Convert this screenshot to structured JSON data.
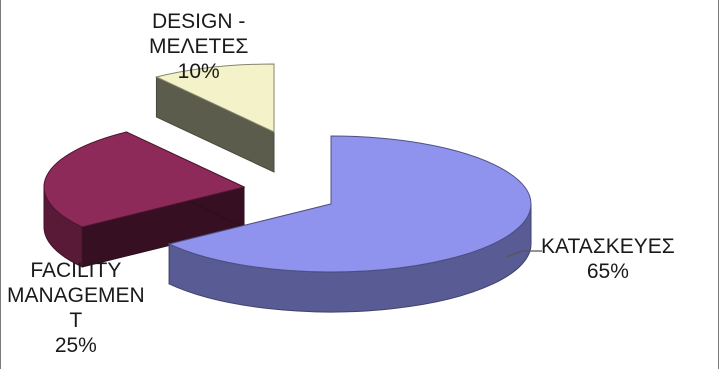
{
  "chart_data": {
    "type": "pie",
    "style": "3d-exploded",
    "title": "",
    "legend": "none",
    "slices": [
      {
        "name": "KATAΣKEYEΣ",
        "label_lines": [
          "ΚΑΤΑΣΚΕΥΕΣ"
        ],
        "percent_label": "65%",
        "value": 65,
        "color": "#8f93ee"
      },
      {
        "name": "FACILITY MANAGEMENT",
        "label_lines": [
          "FACILITY",
          "MANAGEMEN",
          "T"
        ],
        "percent_label": "25%",
        "value": 25,
        "color": "#8e2a59"
      },
      {
        "name": "DESIGN - ΜΕΛΕΤΕΣ",
        "label_lines": [
          "DESIGN -",
          "ΜΕΛΕΤΕΣ"
        ],
        "percent_label": "10%",
        "value": 10,
        "color": "#f3f2c8"
      }
    ]
  }
}
